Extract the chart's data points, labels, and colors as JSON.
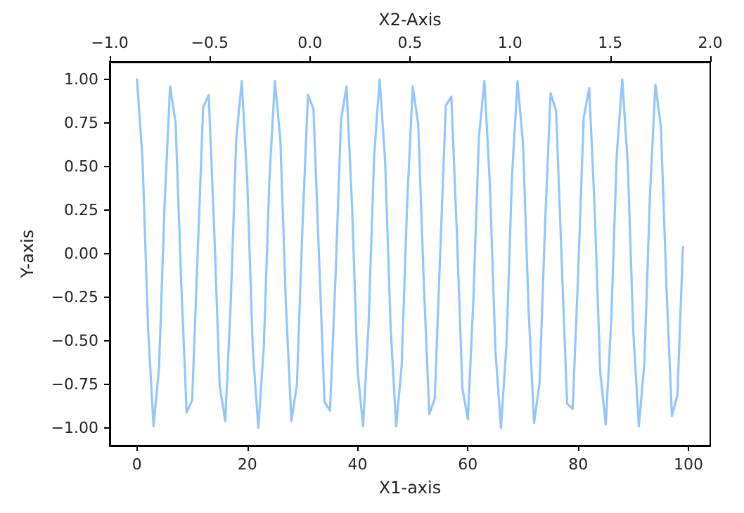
{
  "chart_data": {
    "type": "line",
    "xlabel": "X1-axis",
    "ylabel": "Y-axis",
    "x2label": "X2-Axis",
    "x": [
      0,
      1,
      2,
      3,
      4,
      5,
      6,
      7,
      8,
      9,
      10,
      11,
      12,
      13,
      14,
      15,
      16,
      17,
      18,
      19,
      20,
      21,
      22,
      23,
      24,
      25,
      26,
      27,
      28,
      29,
      30,
      31,
      32,
      33,
      34,
      35,
      36,
      37,
      38,
      39,
      40,
      41,
      42,
      43,
      44,
      45,
      46,
      47,
      48,
      49,
      50,
      51,
      52,
      53,
      54,
      55,
      56,
      57,
      58,
      59,
      60,
      61,
      62,
      63,
      64,
      65,
      66,
      67,
      68,
      69,
      70,
      71,
      72,
      73,
      74,
      75,
      76,
      77,
      78,
      79,
      80,
      81,
      82,
      83,
      84,
      85,
      86,
      87,
      88,
      89,
      90,
      91,
      92,
      93,
      94,
      95,
      96,
      97,
      98,
      99
    ],
    "series": [
      {
        "color": "#92c6ff",
        "values": [
          1.0,
          0.54,
          -0.42,
          -0.99,
          -0.65,
          0.28,
          0.96,
          0.75,
          -0.15,
          -0.91,
          -0.84,
          0.0,
          0.84,
          0.91,
          0.14,
          -0.76,
          -0.96,
          -0.28,
          0.66,
          0.99,
          0.41,
          -0.55,
          -1.0,
          -0.53,
          0.42,
          0.99,
          0.65,
          -0.29,
          -0.96,
          -0.75,
          0.15,
          0.91,
          0.83,
          -0.01,
          -0.85,
          -0.9,
          -0.13,
          0.77,
          0.96,
          0.27,
          -0.67,
          -0.99,
          -0.4,
          0.56,
          1.0,
          0.53,
          -0.43,
          -0.99,
          -0.64,
          0.3,
          0.96,
          0.74,
          -0.16,
          -0.92,
          -0.83,
          0.02,
          0.85,
          0.9,
          0.12,
          -0.77,
          -0.95,
          -0.26,
          0.67,
          0.99,
          0.39,
          -0.56,
          -1.0,
          -0.52,
          0.44,
          0.99,
          0.63,
          -0.31,
          -0.97,
          -0.74,
          0.17,
          0.92,
          0.82,
          -0.03,
          -0.86,
          -0.89,
          -0.11,
          0.78,
          0.95,
          0.25,
          -0.68,
          -0.98,
          -0.38,
          0.57,
          1.0,
          0.51,
          -0.45,
          -0.99,
          -0.63,
          0.32,
          0.97,
          0.73,
          -0.18,
          -0.93,
          -0.81,
          0.04
        ]
      }
    ],
    "xlim": [
      -4.95,
      103.95
    ],
    "xticks": [
      0,
      20,
      40,
      60,
      80,
      100
    ],
    "x2lim": [
      -1.0,
      2.0
    ],
    "x2ticks": [
      {
        "value": -1.0,
        "label": "−1.0"
      },
      {
        "value": -0.5,
        "label": "−0.5"
      },
      {
        "value": 0,
        "label": "0.0"
      },
      {
        "value": 0.5,
        "label": "0.5"
      },
      {
        "value": 1.0,
        "label": "1.0"
      },
      {
        "value": 1.5,
        "label": "1.5"
      },
      {
        "value": 2.0,
        "label": "2.0"
      }
    ],
    "ylim": [
      -1.1,
      1.1
    ],
    "yticks": [
      {
        "value": -1.0,
        "label": "−1.00"
      },
      {
        "value": -0.75,
        "label": "−0.75"
      },
      {
        "value": -0.5,
        "label": "−0.50"
      },
      {
        "value": -0.25,
        "label": "−0.25"
      },
      {
        "value": 0,
        "label": "0.00"
      },
      {
        "value": 0.25,
        "label": "0.25"
      },
      {
        "value": 0.5,
        "label": "0.50"
      },
      {
        "value": 0.75,
        "label": "0.75"
      },
      {
        "value": 1.0,
        "label": "1.00"
      }
    ],
    "grid": false,
    "marker": "none",
    "line_style": "solid"
  }
}
